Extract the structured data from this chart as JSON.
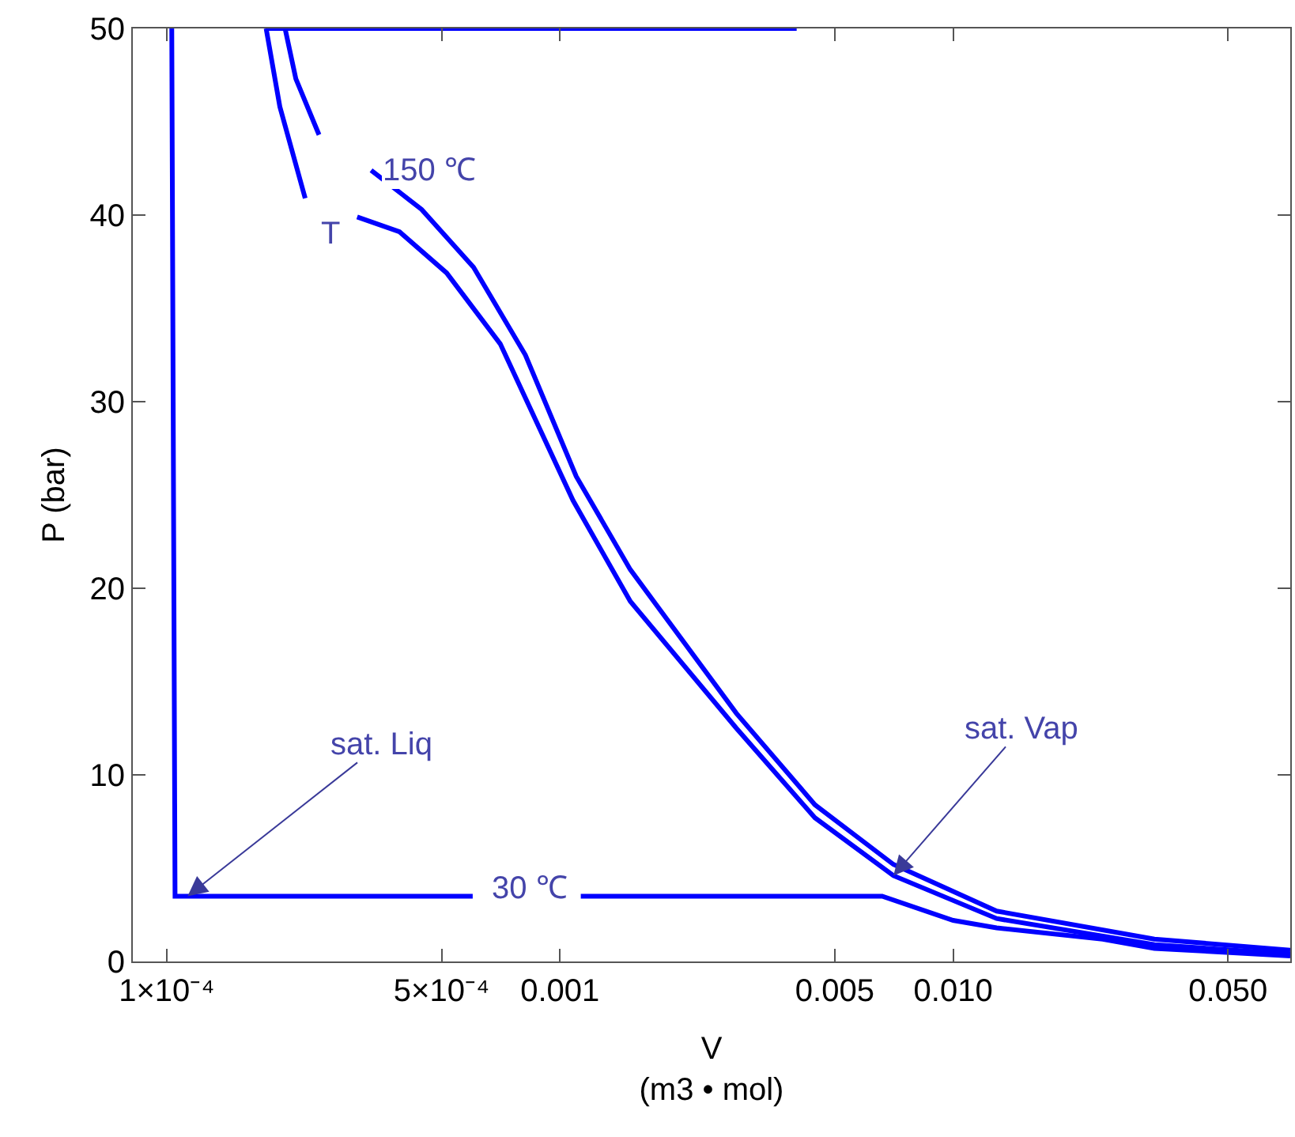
{
  "chart_data": {
    "type": "line",
    "xlabel": "V\n(m3 • mol)",
    "ylabel": "P (bar)",
    "log": "x",
    "xlim": [
      8.2e-05,
      0.072
    ],
    "ylim": [
      0,
      50
    ],
    "xticks": [
      {
        "value": 0.0001,
        "label": "1×10⁻⁴"
      },
      {
        "value": 0.0005,
        "label": "5×10⁻⁴"
      },
      0.001,
      0.005,
      {
        "value": 0.01,
        "label": "0.010"
      },
      {
        "value": 0.05,
        "label": "0.050"
      }
    ],
    "yticks": [
      0,
      10,
      20,
      30,
      40,
      50
    ],
    "grid": false,
    "marker": "none",
    "line_style": "solid",
    "series": [
      {
        "color": "#0000ff",
        "x": [
          0.000179,
          0.004
        ],
        "values": [
          50,
          50
        ]
      },
      {
        "color": "#0000ff",
        "x": [
          0.000179,
          0.000194,
          0.000225,
          0.00024,
          0.000305,
          0.000391,
          0.000515,
          0.000705,
          0.00108,
          0.00151,
          0.00281,
          0.00445,
          0.00705,
          0.0129,
          0.0325,
          0.072
        ],
        "values": [
          50,
          45.8,
          40.9,
          null,
          39.9,
          39.1,
          36.9,
          33.1,
          24.7,
          19.3,
          12.5,
          7.7,
          4.6,
          2.3,
          0.9,
          0.4
        ]
      },
      {
        "color": "#0000ff",
        "x": [
          0.0002,
          0.000213,
          0.000244,
          0.00029,
          0.000331,
          0.000445,
          0.000603,
          0.000817,
          0.0011,
          0.00151,
          0.00281,
          0.00445,
          0.00705,
          0.0129,
          0.0325,
          0.072
        ],
        "values": [
          50,
          47.3,
          44.3,
          null,
          42.4,
          40.3,
          37.2,
          32.5,
          26,
          21,
          13.3,
          8.4,
          5.2,
          2.7,
          1.2,
          0.6
        ]
      },
      {
        "color": "#0000ff",
        "x": [
          0.000103,
          0.000105,
          0.0006,
          0.0008,
          0.00113,
          0.0066,
          0.01,
          0.0129,
          0.024,
          0.0325,
          0.072
        ],
        "values": [
          50,
          3.5,
          3.5,
          null,
          3.5,
          3.5,
          2.2,
          1.8,
          1.2,
          0.7,
          0.3
        ]
      }
    ],
    "annotations": [
      "150 ℃",
      "T",
      "30 ℃",
      {
        "text": "sat. Liq",
        "x": 0.000113,
        "y": 3.5
      },
      {
        "text": "sat. Vap",
        "x": 0.00705,
        "y": 4.6
      }
    ]
  }
}
